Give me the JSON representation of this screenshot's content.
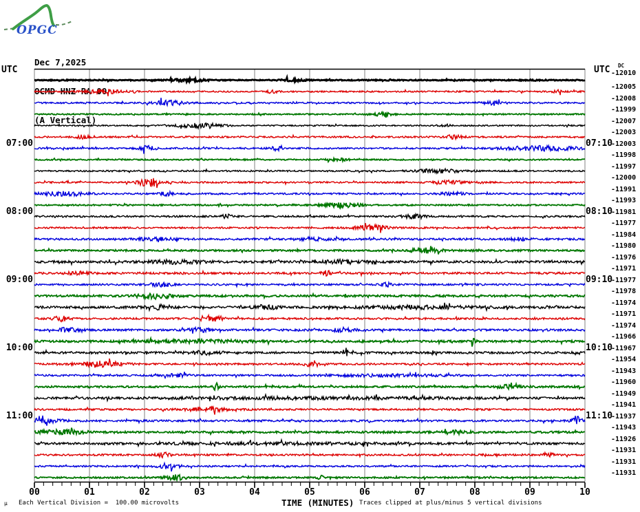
{
  "logo": {
    "text": "OPGC",
    "text_color": "#2a52c8",
    "curve_color": "#3f9e46"
  },
  "header": {
    "date": "Dec 7,2025",
    "station": "OCMD HNZ RA 00",
    "component": "(A Vertical)"
  },
  "axis": {
    "left_title": "UTC",
    "right_title": "UTC",
    "dc_column_label": "DC",
    "x_title": "TIME (MINUTES)"
  },
  "footer": {
    "micro_mark": "µ",
    "scale_note": "Each Vertical Division =  100.00 microvolts",
    "clip_note": "Traces clipped at plus/minus 5 vertical divisions"
  },
  "chart_data": {
    "type": "line",
    "subtype": "helicorder-seismogram",
    "title": "OCMD HNZ RA 00 (A Vertical) Dec 7,2025",
    "xlabel": "TIME (MINUTES)",
    "x_range_minutes": [
      0,
      10
    ],
    "x_tick_labels": [
      "00",
      "01",
      "02",
      "03",
      "04",
      "05",
      "06",
      "07",
      "08",
      "09",
      "10"
    ],
    "minor_ticks_per_minute": 6,
    "row_duration_minutes": 10,
    "vertical_division_microvolts": 100.0,
    "clip_divisions": 5,
    "grid_color": "#808080",
    "trace_color_cycle": [
      "#000000",
      "#dd0000",
      "#0000dd",
      "#007700"
    ],
    "rows": [
      {
        "left": "",
        "right": "",
        "dc": "-12010",
        "lw": 2.8,
        "noise": 0.7,
        "bursts": [
          [
            0.28,
            0.03,
            1.8
          ],
          [
            0.47,
            0.02,
            1.5
          ]
        ]
      },
      {
        "left": "",
        "right": "",
        "dc": "-12005",
        "lw": 1.4,
        "noise": 1.1,
        "bursts": [
          [
            0.13,
            0.035,
            2.6
          ],
          [
            0.43,
            0.012,
            2.2
          ],
          [
            0.95,
            0.01,
            2.0
          ]
        ]
      },
      {
        "left": "",
        "right": "",
        "dc": "-12008",
        "lw": 1.4,
        "noise": 1.1,
        "bursts": [
          [
            0.245,
            0.03,
            3.0
          ],
          [
            0.83,
            0.02,
            2.4
          ]
        ]
      },
      {
        "left": "",
        "right": "",
        "dc": "-11999",
        "lw": 1.8,
        "noise": 0.9,
        "bursts": [
          [
            0.63,
            0.02,
            2.2
          ]
        ]
      },
      {
        "left": "",
        "right": "",
        "dc": "-12007",
        "lw": 1.4,
        "noise": 1.0,
        "bursts": [
          [
            0.3,
            0.04,
            3.2
          ],
          [
            0.75,
            0.01,
            2.0
          ]
        ]
      },
      {
        "left": "",
        "right": "",
        "dc": "-12003",
        "lw": 1.4,
        "noise": 1.2,
        "bursts": [
          [
            0.09,
            0.015,
            2.8
          ],
          [
            0.76,
            0.02,
            2.2
          ]
        ]
      },
      {
        "left": "07:00",
        "right": "07:10",
        "dc": "-12003",
        "lw": 1.4,
        "noise": 1.2,
        "bursts": [
          [
            0.205,
            0.015,
            3.6
          ],
          [
            0.44,
            0.012,
            2.6
          ],
          [
            0.92,
            0.07,
            3.0
          ]
        ]
      },
      {
        "left": "",
        "right": "",
        "dc": "-11998",
        "lw": 1.8,
        "noise": 0.9,
        "bursts": [
          [
            0.55,
            0.02,
            1.8
          ]
        ]
      },
      {
        "left": "",
        "right": "",
        "dc": "-11997",
        "lw": 1.4,
        "noise": 1.1,
        "bursts": [
          [
            0.73,
            0.045,
            2.6
          ]
        ]
      },
      {
        "left": "",
        "right": "",
        "dc": "-12000",
        "lw": 1.4,
        "noise": 1.2,
        "bursts": [
          [
            0.21,
            0.022,
            5.5
          ],
          [
            0.76,
            0.03,
            2.2
          ]
        ]
      },
      {
        "left": "",
        "right": "",
        "dc": "-11991",
        "lw": 1.4,
        "noise": 1.2,
        "bursts": [
          [
            0.05,
            0.04,
            2.6
          ],
          [
            0.24,
            0.012,
            2.8
          ],
          [
            0.76,
            0.02,
            2.2
          ]
        ]
      },
      {
        "left": "",
        "right": "",
        "dc": "-11993",
        "lw": 1.8,
        "noise": 1.0,
        "bursts": [
          [
            0.56,
            0.035,
            2.8
          ]
        ]
      },
      {
        "left": "08:00",
        "right": "08:10",
        "dc": "-11981",
        "lw": 1.4,
        "noise": 1.3,
        "bursts": [
          [
            0.35,
            0.008,
            3.6
          ],
          [
            0.69,
            0.02,
            2.6
          ]
        ]
      },
      {
        "left": "",
        "right": "",
        "dc": "-11977",
        "lw": 1.4,
        "noise": 1.2,
        "bursts": [
          [
            0.61,
            0.03,
            3.6
          ]
        ]
      },
      {
        "left": "",
        "right": "",
        "dc": "-11984",
        "lw": 1.4,
        "noise": 1.4,
        "bursts": [
          [
            0.22,
            0.03,
            2.2
          ],
          [
            0.51,
            0.03,
            2.2
          ],
          [
            0.88,
            0.02,
            2.0
          ]
        ]
      },
      {
        "left": "",
        "right": "",
        "dc": "-11980",
        "lw": 1.8,
        "noise": 1.2,
        "bursts": [
          [
            0.71,
            0.03,
            3.2
          ]
        ]
      },
      {
        "left": "",
        "right": "",
        "dc": "-11976",
        "lw": 1.4,
        "noise": 1.7,
        "bursts": [
          [
            0.26,
            0.05,
            2.2
          ],
          [
            0.56,
            0.04,
            2.2
          ]
        ]
      },
      {
        "left": "",
        "right": "",
        "dc": "-11971",
        "lw": 1.4,
        "noise": 1.5,
        "bursts": [
          [
            0.53,
            0.008,
            3.8
          ],
          [
            0.08,
            0.02,
            2.2
          ]
        ]
      },
      {
        "left": "09:00",
        "right": "09:10",
        "dc": "-11977",
        "lw": 1.4,
        "noise": 1.3,
        "bursts": [
          [
            0.23,
            0.02,
            3.2
          ],
          [
            0.64,
            0.012,
            2.8
          ]
        ]
      },
      {
        "left": "",
        "right": "",
        "dc": "-11978",
        "lw": 1.8,
        "noise": 1.4,
        "bursts": [
          [
            0.22,
            0.03,
            3.6
          ]
        ]
      },
      {
        "left": "",
        "right": "",
        "dc": "-11974",
        "lw": 1.4,
        "noise": 1.7,
        "bursts": [
          [
            0.23,
            0.02,
            3.2
          ],
          [
            0.42,
            0.02,
            3.2
          ],
          [
            0.7,
            0.1,
            1.8
          ]
        ]
      },
      {
        "left": "",
        "right": "",
        "dc": "-11971",
        "lw": 1.4,
        "noise": 1.4,
        "bursts": [
          [
            0.05,
            0.015,
            3.2
          ],
          [
            0.33,
            0.02,
            3.2
          ]
        ]
      },
      {
        "left": "",
        "right": "",
        "dc": "-11974",
        "lw": 1.4,
        "noise": 1.5,
        "bursts": [
          [
            0.06,
            0.02,
            2.8
          ],
          [
            0.3,
            0.02,
            2.8
          ],
          [
            0.56,
            0.02,
            2.8
          ]
        ]
      },
      {
        "left": "",
        "right": "",
        "dc": "-11966",
        "lw": 1.8,
        "noise": 1.4,
        "bursts": [
          [
            0.8,
            0.006,
            4.5
          ],
          [
            0.3,
            0.1,
            1.6
          ]
        ]
      },
      {
        "left": "10:00",
        "right": "10:10",
        "dc": "-11967",
        "lw": 1.4,
        "noise": 1.6,
        "bursts": [
          [
            0.565,
            0.004,
            7.5
          ],
          [
            0.31,
            0.03,
            2.2
          ]
        ]
      },
      {
        "left": "",
        "right": "",
        "dc": "-11954",
        "lw": 1.4,
        "noise": 1.3,
        "bursts": [
          [
            0.12,
            0.04,
            3.6
          ],
          [
            0.5,
            0.012,
            2.6
          ]
        ]
      },
      {
        "left": "",
        "right": "",
        "dc": "-11943",
        "lw": 1.4,
        "noise": 1.3,
        "bursts": [
          [
            0.26,
            0.02,
            2.2
          ],
          [
            0.65,
            0.1,
            1.5
          ]
        ]
      },
      {
        "left": "",
        "right": "",
        "dc": "-11960",
        "lw": 1.8,
        "noise": 1.3,
        "bursts": [
          [
            0.33,
            0.006,
            4.5
          ],
          [
            0.86,
            0.02,
            2.2
          ]
        ]
      },
      {
        "left": "",
        "right": "",
        "dc": "-11949",
        "lw": 1.4,
        "noise": 1.5,
        "bursts": [
          [
            0.5,
            0.3,
            1.2
          ]
        ]
      },
      {
        "left": "",
        "right": "",
        "dc": "-11941",
        "lw": 1.4,
        "noise": 1.3,
        "bursts": [
          [
            0.31,
            0.035,
            3.6
          ]
        ]
      },
      {
        "left": "11:00",
        "right": "11:10",
        "dc": "-11937",
        "lw": 1.4,
        "noise": 1.4,
        "bursts": [
          [
            0.02,
            0.03,
            3.4
          ],
          [
            0.985,
            0.01,
            6.5
          ]
        ]
      },
      {
        "left": "",
        "right": "",
        "dc": "-11943",
        "lw": 1.8,
        "noise": 1.4,
        "bursts": [
          [
            0.05,
            0.05,
            2.6
          ],
          [
            0.76,
            0.02,
            2.2
          ]
        ]
      },
      {
        "left": "",
        "right": "",
        "dc": "-11926",
        "lw": 1.4,
        "noise": 1.5,
        "bursts": [
          [
            0.45,
            0.2,
            1.2
          ]
        ]
      },
      {
        "left": "",
        "right": "",
        "dc": "-11931",
        "lw": 1.4,
        "noise": 1.3,
        "bursts": [
          [
            0.235,
            0.012,
            3.6
          ],
          [
            0.94,
            0.008,
            3.2
          ]
        ]
      },
      {
        "left": "",
        "right": "",
        "dc": "-11931",
        "lw": 1.4,
        "noise": 1.2,
        "bursts": [
          [
            0.245,
            0.02,
            3.2
          ]
        ]
      },
      {
        "left": "",
        "right": "",
        "dc": "-11931",
        "lw": 1.8,
        "noise": 1.1,
        "bursts": [
          [
            0.255,
            0.018,
            3.6
          ],
          [
            0.52,
            0.005,
            3.0
          ]
        ]
      }
    ]
  }
}
